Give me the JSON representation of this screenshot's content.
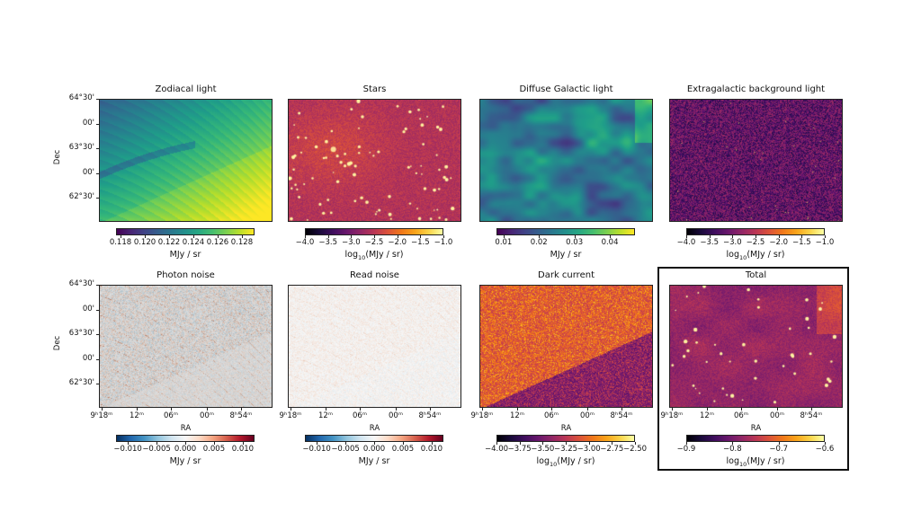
{
  "axes": {
    "dec_label": "Dec",
    "ra_label": "RA",
    "dec_ticks": [
      "64°30'",
      "00'",
      "63°30'",
      "00'",
      "62°30'"
    ],
    "ra_ticks": [
      "9ʰ18ᵐ",
      "12ᵐ",
      "06ᵐ",
      "00ᵐ",
      "8ʰ54ᵐ"
    ]
  },
  "panels": [
    {
      "title": "Zodiacal light",
      "cmap": "viridis",
      "range": [
        0.11763,
        0.12904
      ],
      "ticks": [
        0.118,
        0.12,
        0.122,
        0.124,
        0.126,
        0.128
      ],
      "tick_labels": [
        "0.118",
        "0.120",
        "0.122",
        "0.124",
        "0.126",
        "0.128"
      ],
      "label": {
        "pre": "MJy / sr",
        "sub": "",
        "post": ""
      }
    },
    {
      "title": "Stars",
      "cmap": "inferno",
      "range": [
        -4.0,
        -1.0
      ],
      "ticks": [
        -4.0,
        -3.5,
        -3.0,
        -2.5,
        -2.0,
        -1.5,
        -1.0
      ],
      "tick_labels": [
        "−4.0",
        "−3.5",
        "−3.0",
        "−2.5",
        "−2.0",
        "−1.5",
        "−1.0"
      ],
      "label": {
        "pre": "log",
        "sub": "10",
        "post": "(MJy / sr)"
      }
    },
    {
      "title": "Diffuse Galactic light",
      "cmap": "viridis",
      "range": [
        0.008,
        0.0471
      ],
      "ticks": [
        0.01,
        0.02,
        0.03,
        0.04
      ],
      "tick_labels": [
        "0.01",
        "0.02",
        "0.03",
        "0.04"
      ],
      "label": {
        "pre": "MJy / sr",
        "sub": "",
        "post": ""
      }
    },
    {
      "title": "Extragalactic background light",
      "cmap": "inferno",
      "range": [
        -4.0,
        -1.0
      ],
      "ticks": [
        -4.0,
        -3.5,
        -3.0,
        -2.5,
        -2.0,
        -1.5,
        -1.0
      ],
      "tick_labels": [
        "−4.0",
        "−3.5",
        "−3.0",
        "−2.5",
        "−2.0",
        "−1.5",
        "−1.0"
      ],
      "label": {
        "pre": "log",
        "sub": "10",
        "post": "(MJy / sr)"
      }
    },
    {
      "title": "Photon noise",
      "cmap": "RdBu_r",
      "range": [
        -0.01205,
        0.01205
      ],
      "ticks": [
        -0.01,
        -0.005,
        0.0,
        0.005,
        0.01
      ],
      "tick_labels": [
        "−0.010",
        "−0.005",
        "0.000",
        "0.005",
        "0.010"
      ],
      "label": {
        "pre": "MJy / sr",
        "sub": "",
        "post": ""
      }
    },
    {
      "title": "Read noise",
      "cmap": "RdBu_r",
      "range": [
        -0.01205,
        0.01205
      ],
      "ticks": [
        -0.01,
        -0.005,
        0.0,
        0.005,
        0.01
      ],
      "tick_labels": [
        "−0.010",
        "−0.005",
        "0.000",
        "0.005",
        "0.010"
      ],
      "label": {
        "pre": "MJy / sr",
        "sub": "",
        "post": ""
      }
    },
    {
      "title": "Dark current",
      "cmap": "inferno",
      "range": [
        -4.0,
        -2.5
      ],
      "ticks": [
        -4.0,
        -3.75,
        -3.5,
        -3.25,
        -3.0,
        -2.75,
        -2.5
      ],
      "tick_labels": [
        "−4.00",
        "−3.75",
        "−3.50",
        "−3.25",
        "−3.00",
        "−2.75",
        "−2.50"
      ],
      "label": {
        "pre": "log",
        "sub": "10",
        "post": "(MJy / sr)"
      }
    },
    {
      "title": "Total",
      "cmap": "inferno",
      "range": [
        -0.9,
        -0.6
      ],
      "ticks": [
        -0.9,
        -0.8,
        -0.7,
        -0.6
      ],
      "tick_labels": [
        "−0.9",
        "−0.8",
        "−0.7",
        "−0.6"
      ],
      "label": {
        "pre": "log",
        "sub": "10",
        "post": "(MJy / sr)"
      },
      "highlighted": true
    }
  ]
}
